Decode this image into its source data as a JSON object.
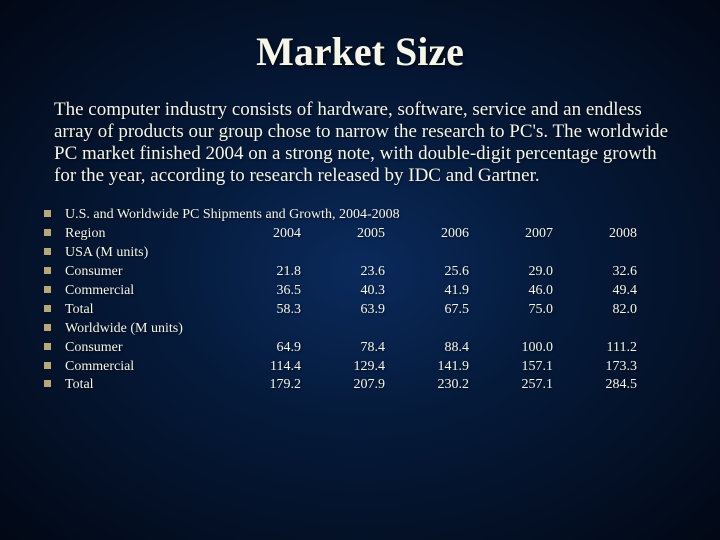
{
  "title": "Market Size",
  "body": "The computer industry consists of hardware, software, service and an endless array of products our group chose to narrow the research to PC's.  The worldwide PC market finished 2004 on a strong note, with double-digit percentage growth for the year, according to research released by IDC and Gartner.",
  "table": {
    "header_line": "U.S. and Worldwide PC Shipments and Growth, 2004-2008",
    "years": [
      "2004",
      "2005",
      "2006",
      "2007",
      "2008"
    ],
    "rows": [
      {
        "label": "Region",
        "cells": [
          "2004",
          "2005",
          "2006",
          "2007",
          "2008"
        ]
      },
      {
        "label": "USA (M units)",
        "cells": [
          "",
          "",
          "",
          "",
          ""
        ]
      },
      {
        "label": "Consumer",
        "cells": [
          "21.8",
          "23.6",
          "25.6",
          "29.0",
          "32.6"
        ]
      },
      {
        "label": "Commercial",
        "cells": [
          "36.5",
          "40.3",
          "41.9",
          "46.0",
          "49.4"
        ]
      },
      {
        "label": "Total",
        "cells": [
          "58.3",
          "63.9",
          "67.5",
          "75.0",
          "82.0"
        ]
      },
      {
        "label": "Worldwide (M units)",
        "cells": [
          "",
          "",
          "",
          "",
          ""
        ]
      },
      {
        "label": "Consumer",
        "cells": [
          "64.9",
          "78.4",
          "88.4",
          "100.0",
          "111.2"
        ]
      },
      {
        "label": "Commercial",
        "cells": [
          "114.4",
          "129.4",
          "141.9",
          "157.1",
          "173.3"
        ]
      },
      {
        "label": "Total",
        "cells": [
          "179.2",
          "207.9",
          "230.2",
          "257.1",
          "284.5"
        ]
      }
    ]
  },
  "colors": {
    "bullet": "#b8a878",
    "text": "#f5f5e8",
    "bg_center": "#0a2a5c",
    "bg_edge": "#020815"
  },
  "typography": {
    "title_fontsize": 40,
    "body_fontsize": 19,
    "list_fontsize": 14,
    "font_family": "Times New Roman"
  }
}
